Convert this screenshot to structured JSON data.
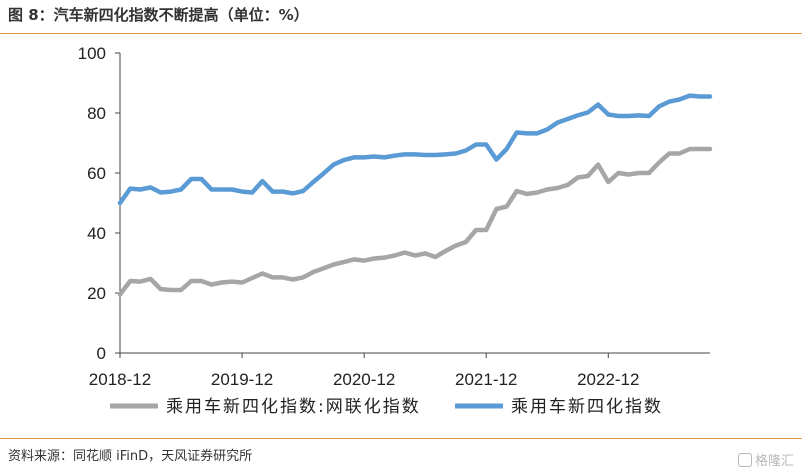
{
  "header": {
    "title": "图 8：汽车新四化指数不断提高（单位：%）"
  },
  "footer": {
    "source": "资料来源：同花顺 iFinD，天风证券研究所",
    "watermark": "格隆汇"
  },
  "colors": {
    "rule": "#e39a4c",
    "series_gray": "#a6a6a6",
    "series_blue": "#5b9bd5"
  },
  "chart_data": {
    "type": "line",
    "ylim": [
      0,
      100
    ],
    "yticks": [
      0,
      20,
      40,
      60,
      80,
      100
    ],
    "xticks": [
      "2018-12",
      "2019-12",
      "2020-12",
      "2021-12",
      "2022-12"
    ],
    "grid": false,
    "legend": "bottom",
    "x": [
      "2018-12",
      "2019-01",
      "2019-02",
      "2019-03",
      "2019-04",
      "2019-05",
      "2019-06",
      "2019-07",
      "2019-08",
      "2019-09",
      "2019-10",
      "2019-11",
      "2019-12",
      "2020-01",
      "2020-02",
      "2020-03",
      "2020-04",
      "2020-05",
      "2020-06",
      "2020-07",
      "2020-08",
      "2020-09",
      "2020-10",
      "2020-11",
      "2020-12",
      "2021-01",
      "2021-02",
      "2021-03",
      "2021-04",
      "2021-05",
      "2021-06",
      "2021-07",
      "2021-08",
      "2021-09",
      "2021-10",
      "2021-11",
      "2021-12",
      "2022-01",
      "2022-02",
      "2022-03",
      "2022-04",
      "2022-05",
      "2022-06",
      "2022-07",
      "2022-08",
      "2022-09",
      "2022-10",
      "2022-11",
      "2022-12",
      "2023-01",
      "2023-02",
      "2023-03",
      "2023-04",
      "2023-05",
      "2023-06",
      "2023-07",
      "2023-08",
      "2023-09",
      "2023-10"
    ],
    "series": [
      {
        "name": "乘用车新四化指数:网联化指数",
        "color": "#a6a6a6",
        "values": [
          19.5,
          24,
          23.8,
          24.7,
          21.3,
          21,
          21,
          24,
          24,
          22.8,
          23.5,
          23.8,
          23.5,
          25,
          26.5,
          25.2,
          25.2,
          24.5,
          25.2,
          27,
          28.2,
          29.5,
          30.3,
          31.2,
          30.8,
          31.5,
          31.8,
          32.5,
          33.5,
          32.5,
          33.2,
          32,
          34,
          35.8,
          37,
          41,
          41,
          48,
          48.8,
          54,
          53,
          53.5,
          54.5,
          55,
          56,
          58.5,
          59,
          62.8,
          57,
          60,
          59.5,
          60,
          60,
          63.5,
          66.5,
          66.5,
          68,
          68,
          68
        ]
      },
      {
        "name": "乘用车新四化指数",
        "color": "#5b9bd5",
        "values": [
          50,
          54.8,
          54.5,
          55.2,
          53.5,
          53.8,
          54.5,
          58,
          58,
          54.5,
          54.5,
          54.5,
          53.8,
          53.5,
          57.3,
          53.8,
          53.8,
          53.2,
          54,
          57,
          59.8,
          62.8,
          64.3,
          65.2,
          65.2,
          65.5,
          65.2,
          65.8,
          66.2,
          66.2,
          66,
          66,
          66.2,
          66.5,
          67.5,
          69.5,
          69.5,
          64.5,
          68,
          73.5,
          73.2,
          73.2,
          74.5,
          76.8,
          78,
          79.2,
          80.2,
          82.8,
          79.5,
          79,
          79,
          79.2,
          79,
          82.2,
          83.8,
          84.5,
          85.8,
          85.5,
          85.5
        ]
      }
    ]
  }
}
